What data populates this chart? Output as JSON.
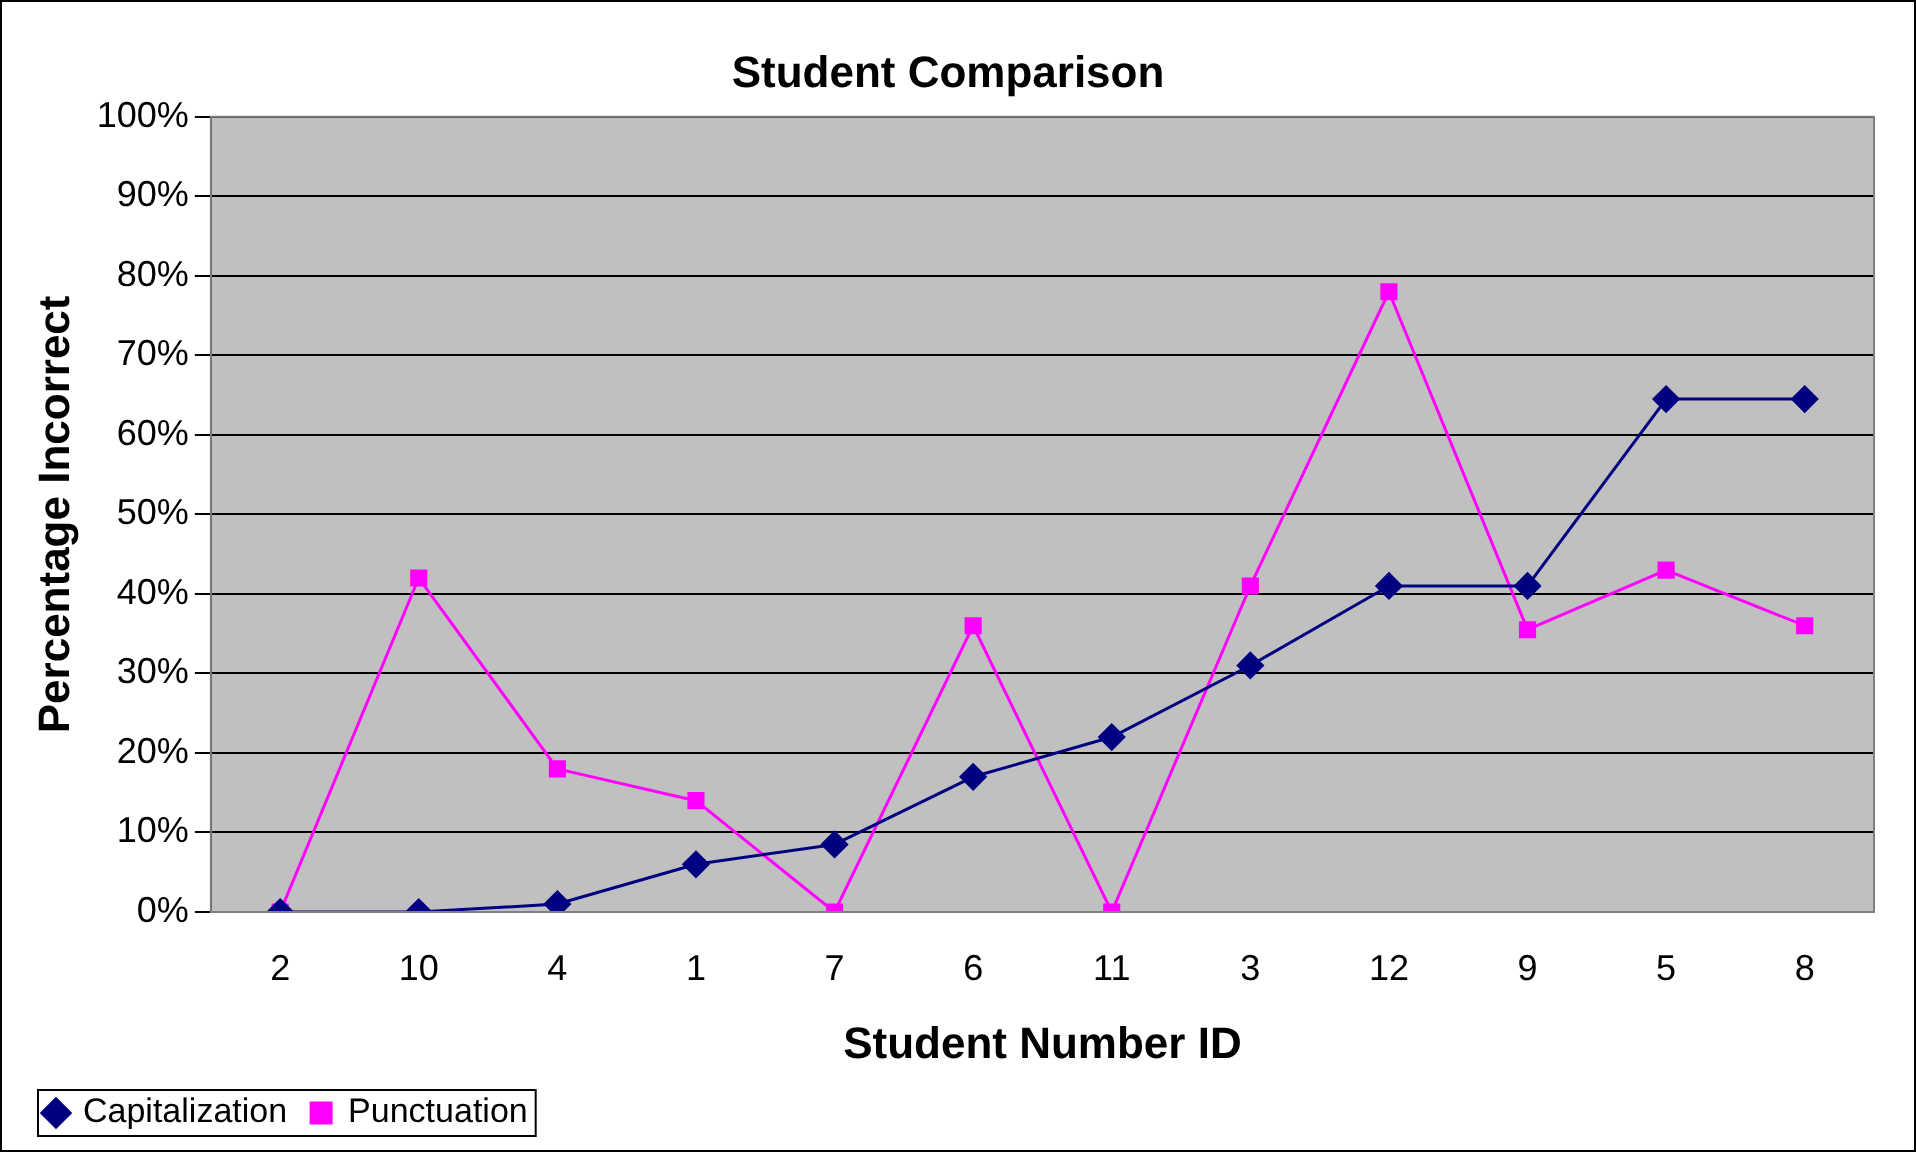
{
  "chart_data": {
    "type": "line",
    "title": "Student Comparison",
    "xlabel": "Student Number ID",
    "ylabel": "Percentage Incorrect",
    "categories": [
      "2",
      "10",
      "4",
      "1",
      "7",
      "6",
      "11",
      "3",
      "12",
      "9",
      "5",
      "8"
    ],
    "series": [
      {
        "name": "Capitalization",
        "color": "#000080",
        "marker": "diamond",
        "values": [
          0,
          0,
          1,
          6,
          8.5,
          17,
          22,
          31,
          41,
          41,
          64.5,
          64.5
        ]
      },
      {
        "name": "Punctuation",
        "color": "#ff00ff",
        "marker": "square",
        "values": [
          0,
          42,
          18,
          14,
          0,
          36,
          0,
          41,
          78,
          35.5,
          43,
          36
        ]
      }
    ],
    "ylim": [
      0,
      100
    ],
    "yticks": [
      {
        "value": 0,
        "label": "0%"
      },
      {
        "value": 10,
        "label": "10%"
      },
      {
        "value": 20,
        "label": "20%"
      },
      {
        "value": 30,
        "label": "30%"
      },
      {
        "value": 40,
        "label": "40%"
      },
      {
        "value": 50,
        "label": "50%"
      },
      {
        "value": 60,
        "label": "60%"
      },
      {
        "value": 70,
        "label": "70%"
      },
      {
        "value": 80,
        "label": "80%"
      },
      {
        "value": 90,
        "label": "90%"
      },
      {
        "value": 100,
        "label": "100%"
      }
    ],
    "grid": "y",
    "legend": "bottom left",
    "line_style": "solid"
  }
}
